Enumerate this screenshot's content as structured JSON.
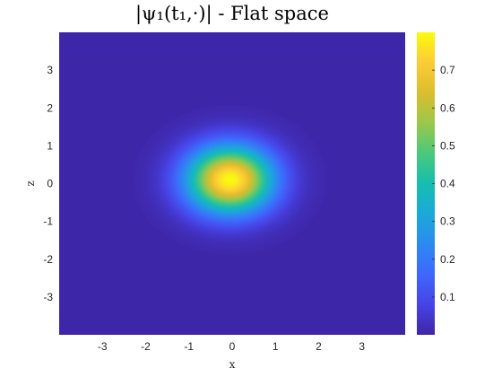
{
  "chart_data": {
    "type": "heatmap",
    "title": "|ψ₁(t₁,·)| - Flat space",
    "xlabel": "x",
    "ylabel": "z",
    "xlim": [
      -4,
      4
    ],
    "ylim": [
      -4,
      4
    ],
    "xticks": [
      -3,
      -2,
      -1,
      0,
      1,
      2,
      3
    ],
    "yticks": [
      -3,
      -2,
      -1,
      0,
      1,
      2,
      3
    ],
    "grid": false,
    "colormap": "parula",
    "colorbar": {
      "range": [
        0,
        0.8
      ],
      "ticks": [
        0.1,
        0.2,
        0.3,
        0.4,
        0.5,
        0.6,
        0.7
      ],
      "tick_labels": [
        "0.1",
        "0.2",
        "0.3",
        "0.4",
        "0.5",
        "0.6",
        "0.7"
      ]
    },
    "field": {
      "description": "single gaussian peak",
      "center": [
        -0.05,
        0.1
      ],
      "peak_value": 0.8,
      "sigma_x": 0.7,
      "sigma_z": 0.62
    }
  },
  "colors": {
    "background": "#ffffff",
    "low": "#3e26a8",
    "high": "#f9fb0e"
  }
}
